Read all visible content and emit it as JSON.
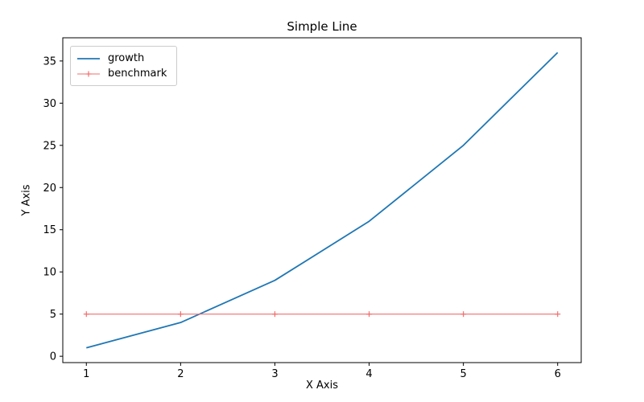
{
  "chart_data": {
    "type": "line",
    "title": "Simple Line",
    "xlabel": "X Axis",
    "ylabel": "Y Axis",
    "x": [
      1,
      2,
      3,
      4,
      5,
      6
    ],
    "series": [
      {
        "name": "growth",
        "values": [
          1,
          4,
          9,
          16,
          25,
          36
        ],
        "color": "#1f77b4",
        "linewidth": 1.8,
        "marker": "none"
      },
      {
        "name": "benchmark",
        "values": [
          5,
          5,
          5,
          5,
          5,
          5
        ],
        "color": "#f26d6d",
        "linewidth": 1.1,
        "marker": "plus"
      }
    ],
    "xlim": [
      0.75,
      6.25
    ],
    "ylim": [
      -0.75,
      37.75
    ],
    "xticks": [
      1,
      2,
      3,
      4,
      5,
      6
    ],
    "yticks": [
      0,
      5,
      10,
      15,
      20,
      25,
      30,
      35
    ],
    "legend": {
      "position": "upper-left",
      "entries": [
        "growth",
        "benchmark"
      ]
    },
    "grid": false,
    "background": "#ffffff",
    "frame_color": "#000000"
  }
}
